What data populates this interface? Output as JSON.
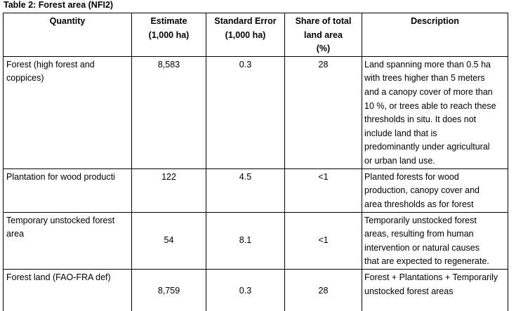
{
  "title": "Table 2: Forest area (NFI2)",
  "table": {
    "headers": {
      "quantity": "Quantity",
      "estimate": "Estimate\n(1,000 ha)",
      "standard_error": "Standard Error\n(1,000 ha)",
      "share": "Share of total\nland area\n(%)",
      "description": "Description"
    },
    "rows": [
      {
        "quantity": "Forest (high forest and\ncoppices)",
        "estimate": "8,583",
        "standard_error": "0.3",
        "share": "28",
        "description": "Land spanning more than 0.5 ha\nwith trees higher than 5 meters\nand a canopy cover of more than\n10 %, or trees able to reach these\nthresholds in situ. It does not\ninclude land that is\npredominantly under agricultural\nor urban land use."
      },
      {
        "quantity": "Plantation for wood producti",
        "estimate": "122",
        "standard_error": "4.5",
        "share": "<1",
        "description": "Planted forests for wood\nproduction, canopy cover and\narea thresholds as for forest"
      },
      {
        "quantity": "Temporary unstocked forest\narea",
        "estimate": "54",
        "standard_error": "8.1",
        "share": "<1",
        "description": "Temporarily unstocked forest\nareas, resulting from human\nintervention or natural causes\nthat are expected to regenerate."
      },
      {
        "quantity": "Forest land (FAO-FRA def)",
        "estimate": "8,759",
        "standard_error": "0.3",
        "share": "28",
        "description": "Forest + Plantations + Temporarily\nunstocked forest areas"
      }
    ]
  }
}
